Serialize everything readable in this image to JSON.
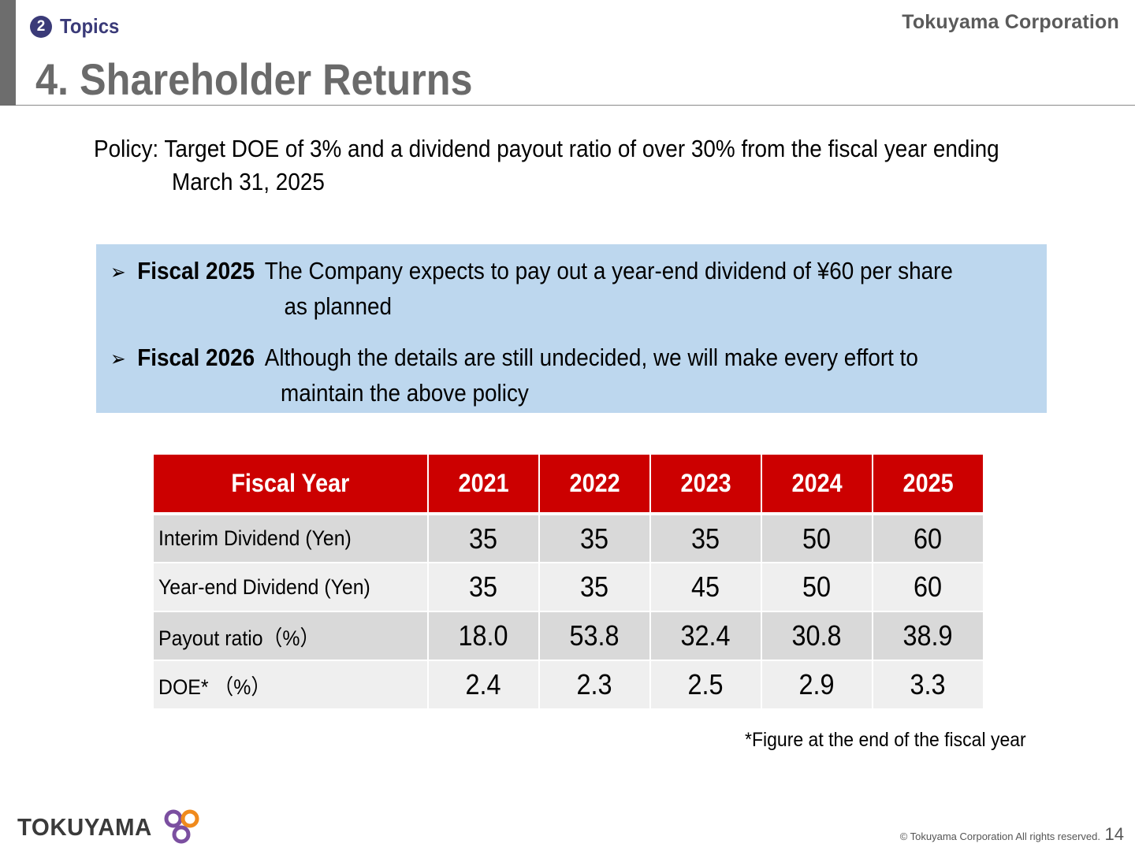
{
  "header": {
    "section_number": "2",
    "section_label": "Topics",
    "company": "Tokuyama Corporation",
    "title": "4. Shareholder Returns"
  },
  "policy": {
    "line1": "Policy: Target DOE of 3% and a dividend payout ratio of over 30% from the fiscal year ending",
    "line2": "March 31, 2025"
  },
  "highlights": [
    {
      "label": "Fiscal 2025",
      "line1": "The Company expects to pay out a year-end dividend of ¥60 per share",
      "line2": "as planned"
    },
    {
      "label": "Fiscal 2026",
      "line1": "Although the details are still undecided, we will make every effort to",
      "line2": "maintain the above policy"
    }
  ],
  "table": {
    "header": {
      "label": "Fiscal Year",
      "years": [
        "2021",
        "2022",
        "2023",
        "2024",
        "2025"
      ]
    },
    "rows": [
      {
        "label": "Interim Dividend (Yen)",
        "values": [
          "35",
          "35",
          "35",
          "50",
          "60"
        ]
      },
      {
        "label": "Year-end Dividend (Yen)",
        "values": [
          "35",
          "35",
          "45",
          "50",
          "60"
        ]
      },
      {
        "label": "Payout ratio（%）",
        "values": [
          "18.0",
          "53.8",
          "32.4",
          "30.8",
          "38.9"
        ]
      },
      {
        "label": "DOE* （%）",
        "values": [
          "2.4",
          "2.3",
          "2.5",
          "2.9",
          "3.3"
        ]
      }
    ]
  },
  "footnote": "*Figure at the end of the fiscal year",
  "footer": {
    "logo_text": "TOKUYAMA",
    "copyright": "© Tokuyama Corporation All rights reserved.",
    "page_number": "14"
  },
  "colors": {
    "table_header": "#cc0000",
    "highlight_box": "#bdd7ee",
    "section_badge": "#3a3a78",
    "logo_mark_purple": "#7b4fa0",
    "logo_mark_orange": "#f08a1c"
  },
  "icons": {
    "bullet": "arrow-bullet-icon",
    "logo_mark": "tokuyama-logo-mark-icon"
  }
}
